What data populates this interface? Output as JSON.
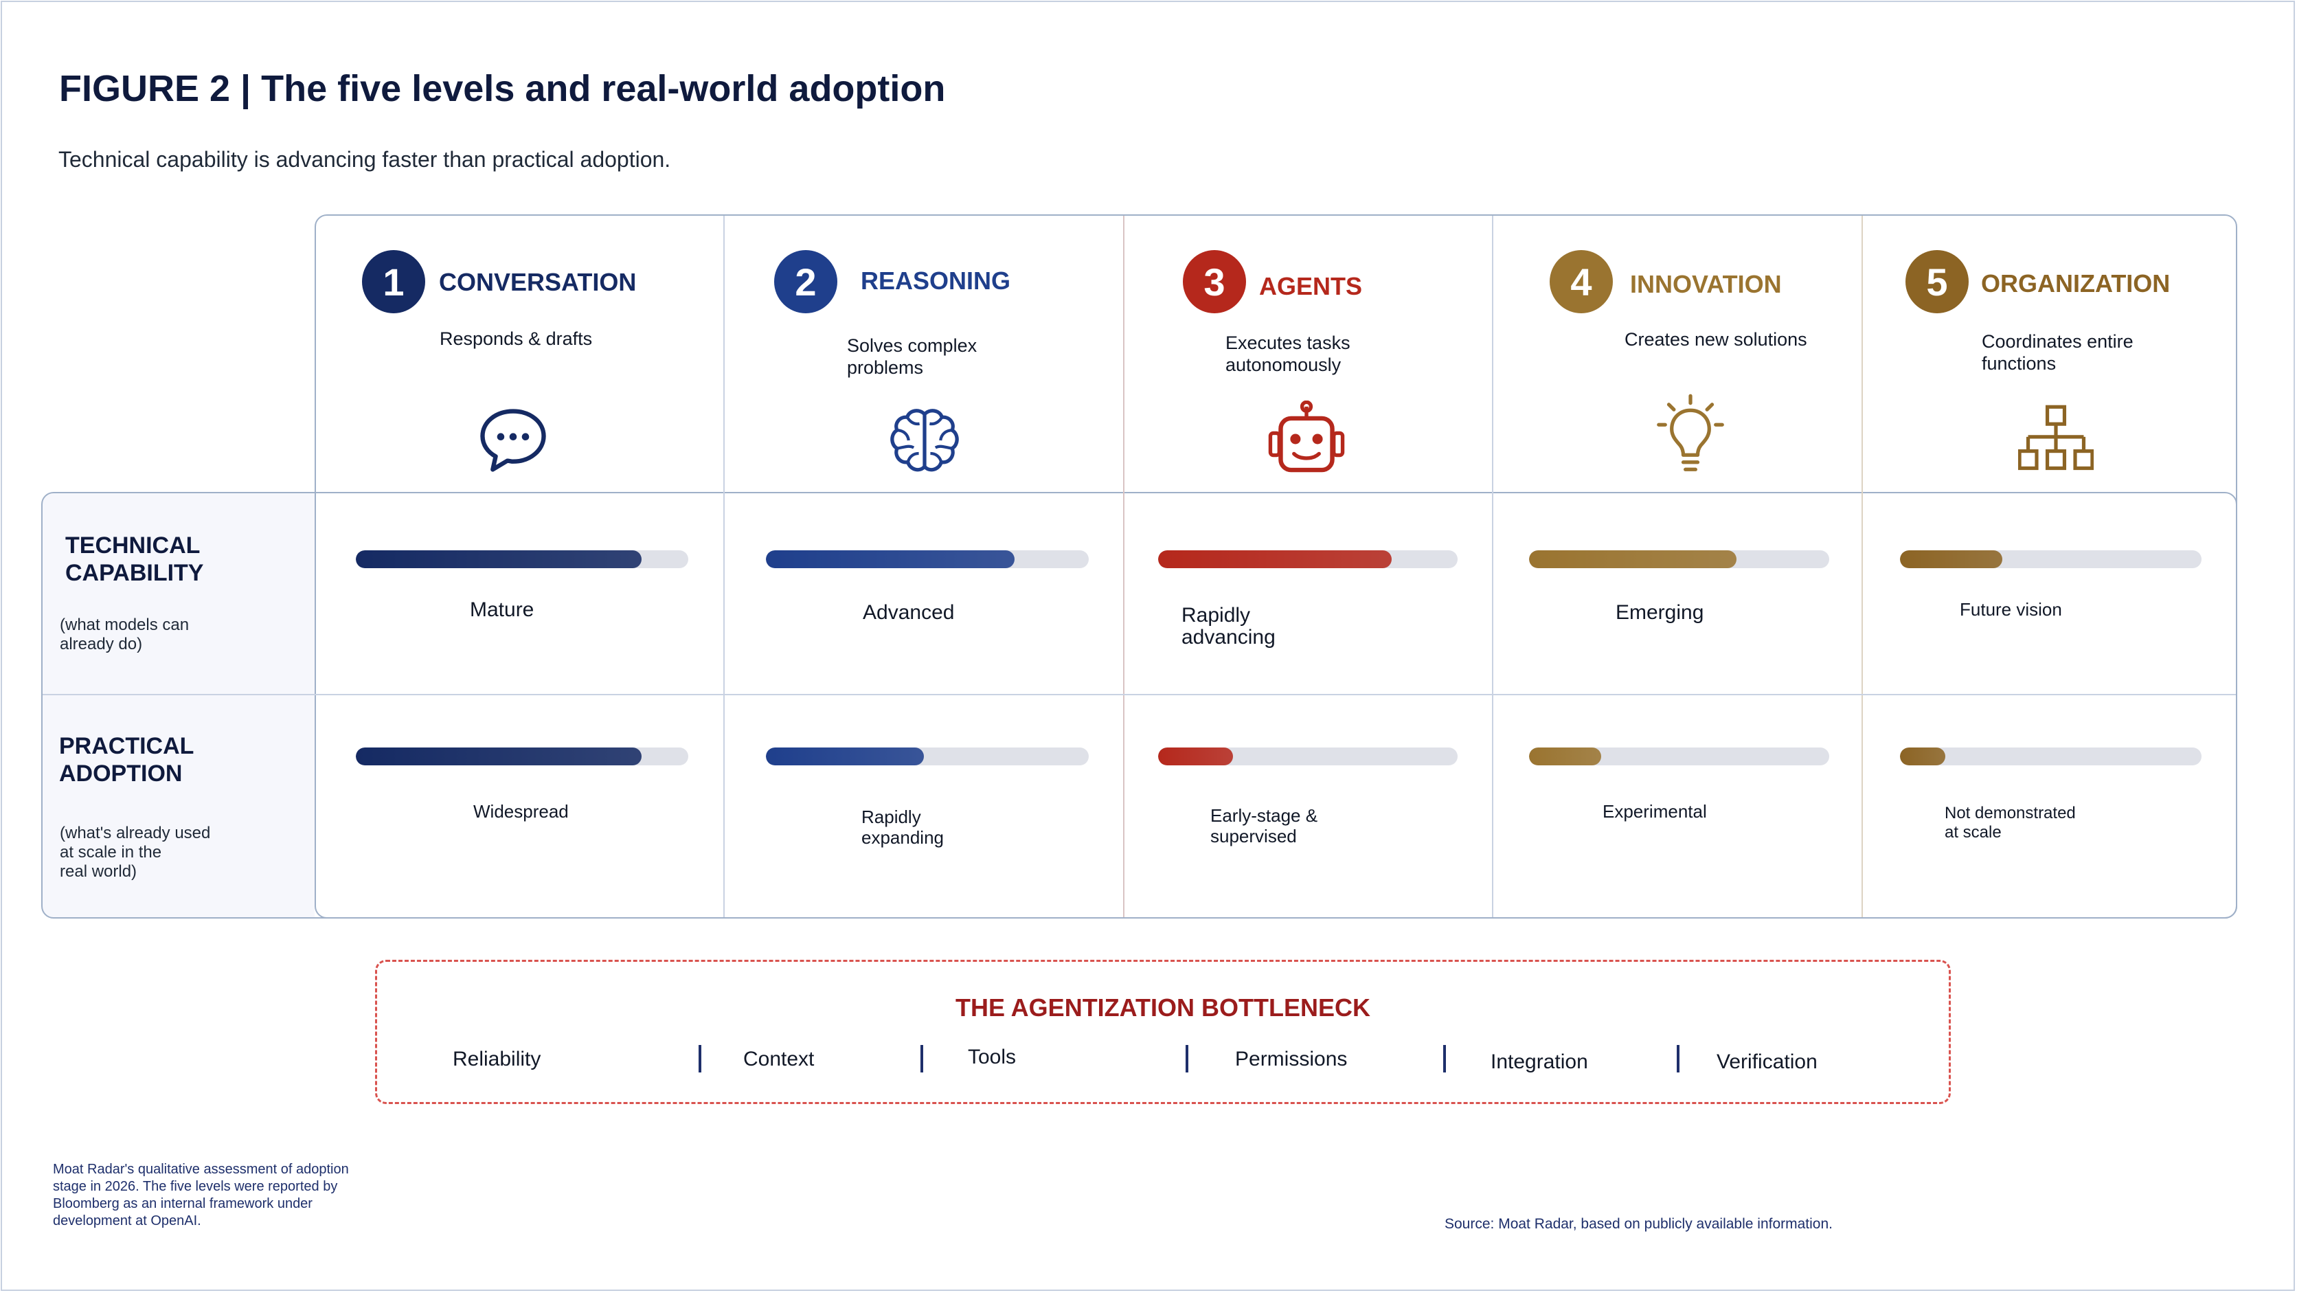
{
  "header": {
    "title": "FIGURE 2  |  The five levels and real-world adoption",
    "subtitle": "Technical capability is advancing faster than practical adoption."
  },
  "rows": {
    "technical": {
      "label_line1": "TECHNICAL",
      "label_line2": "CAPABILITY",
      "note_line1": "(what models can",
      "note_line2": "already do)"
    },
    "practical": {
      "label_line1": "PRACTICAL",
      "label_line2": "ADOPTION",
      "note_line1": "(what's already used",
      "note_line2": "at scale in the",
      "note_line3": "real world)"
    }
  },
  "levels": [
    {
      "number": "1",
      "name": "CONVERSATION",
      "desc_line1": "Responds & drafts",
      "desc_line2": "",
      "icon": "speech-bubble-icon",
      "color": "#152a63",
      "technical": {
        "value": 0.86,
        "label_line1": "Mature",
        "label_line2": ""
      },
      "practical": {
        "value": 0.86,
        "label_line1": "Widespread",
        "label_line2": ""
      }
    },
    {
      "number": "2",
      "name": "REASONING",
      "desc_line1": "Solves complex",
      "desc_line2": "problems",
      "icon": "brain-icon",
      "color": "#1f3f8c",
      "technical": {
        "value": 0.77,
        "label_line1": "Advanced",
        "label_line2": ""
      },
      "practical": {
        "value": 0.49,
        "label_line1": "Rapidly",
        "label_line2": "expanding"
      }
    },
    {
      "number": "3",
      "name": "AGENTS",
      "desc_line1": "Executes tasks",
      "desc_line2": "autonomously",
      "icon": "robot-icon",
      "color": "#b5281c",
      "technical": {
        "value": 0.78,
        "label_line1": "Rapidly",
        "label_line2": "advancing"
      },
      "practical": {
        "value": 0.25,
        "label_line1": "Early-stage &",
        "label_line2": "supervised"
      }
    },
    {
      "number": "4",
      "name": "INNOVATION",
      "desc_line1": "Creates new solutions",
      "desc_line2": "",
      "icon": "lightbulb-icon",
      "color": "#9a7430",
      "technical": {
        "value": 0.69,
        "label_line1": "Emerging",
        "label_line2": ""
      },
      "practical": {
        "value": 0.24,
        "label_line1": "Experimental",
        "label_line2": ""
      }
    },
    {
      "number": "5",
      "name": "ORGANIZATION",
      "desc_line1": "Coordinates entire",
      "desc_line2": "functions",
      "icon": "org-chart-icon",
      "color": "#8c6424",
      "technical": {
        "value": 0.34,
        "label_line1": "Future vision",
        "label_line2": ""
      },
      "practical": {
        "value": 0.15,
        "label_line1": "Not demonstrated",
        "label_line2": "at scale"
      }
    }
  ],
  "bottleneck": {
    "title": "THE AGENTIZATION BOTTLENECK",
    "items": [
      "Reliability",
      "Context",
      "Tools",
      "Permissions",
      "Integration",
      "Verification"
    ]
  },
  "footer": {
    "note": "Moat Radar's qualitative assessment of adoption stage in 2026. The five levels were reported by Bloomberg as an internal framework under development at OpenAI.",
    "source": "Source: Moat Radar, based on publicly available information."
  }
}
